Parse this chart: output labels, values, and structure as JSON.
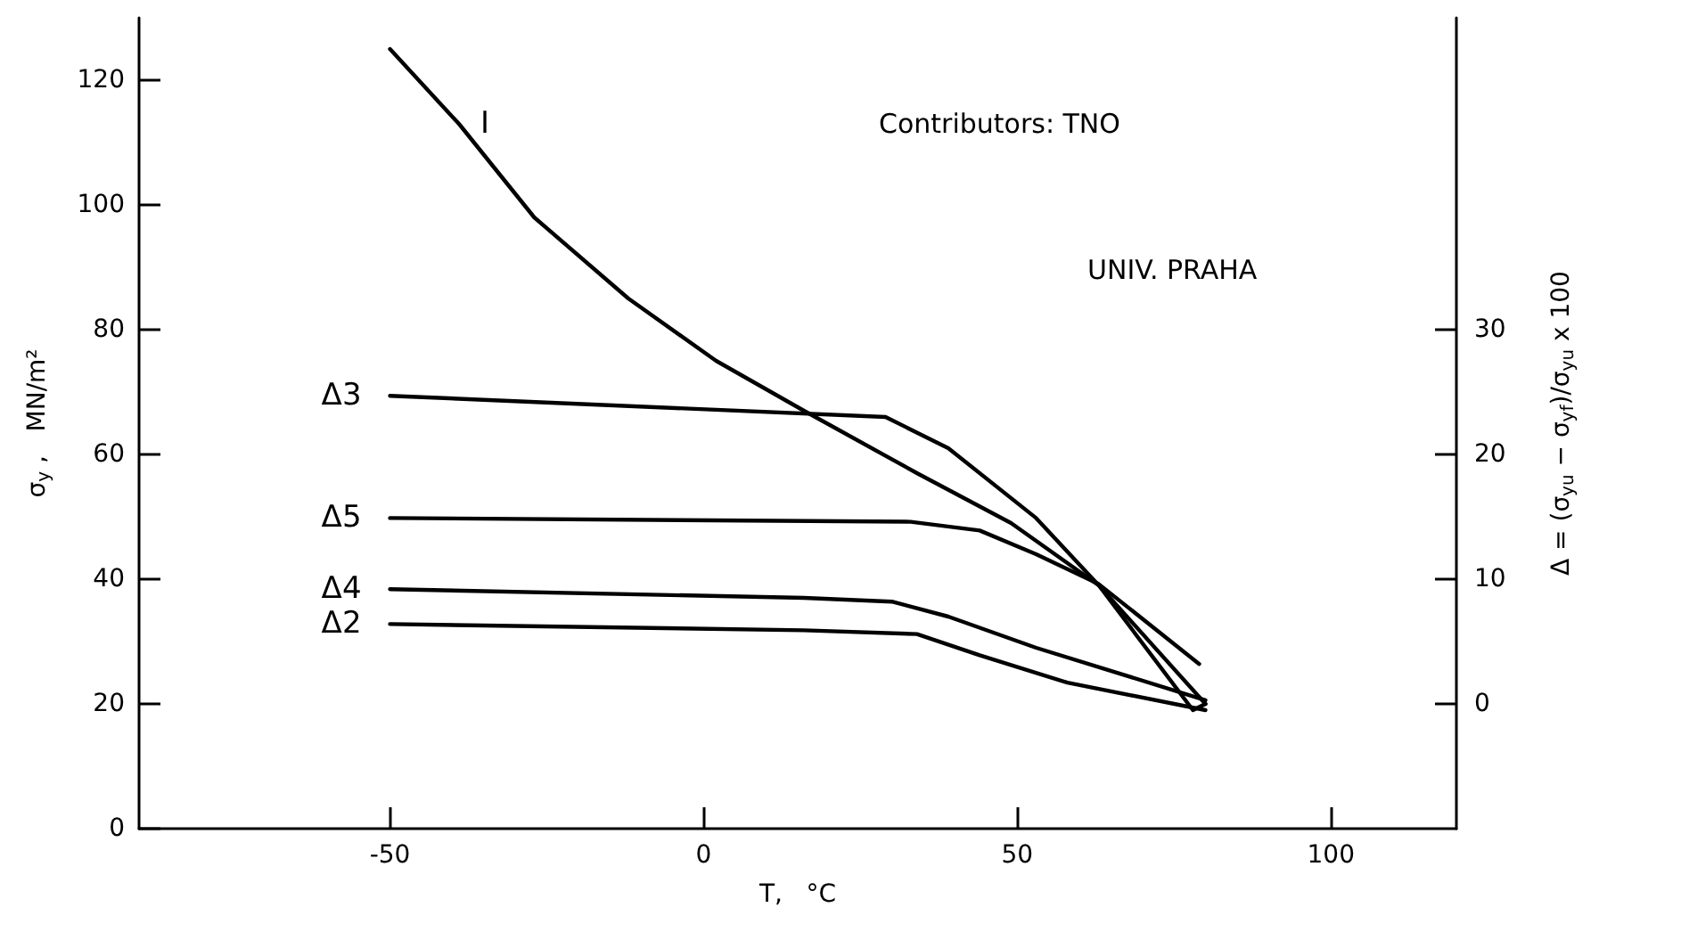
{
  "chart_data": {
    "type": "line",
    "xlabel": "T,   °C",
    "ylabel": "σ$_{y}$ ,   MN/m²",
    "y2label": "Δ = (σ$_{yu}$ − σ$_{yf}$)/σ$_{yu}$ x 100",
    "xlim": [
      -90,
      120
    ],
    "xticks": [
      -50,
      0,
      50,
      100
    ],
    "ylim": [
      0,
      130
    ],
    "yticks": [
      0,
      20,
      40,
      60,
      80,
      100,
      120
    ],
    "y2lim": [
      -10,
      55
    ],
    "y2ticks": [
      0,
      10,
      20,
      30
    ],
    "grid": false,
    "legend": false,
    "marker": "none",
    "line_style": "solid",
    "annotations": [
      "Contributors: TNO",
      "UNIV. PRAHA"
    ],
    "series": [
      {
        "name": "I",
        "color": "#000000",
        "x": [
          -50,
          -39,
          -27,
          -12,
          2,
          16,
          34,
          49,
          63,
          78,
          80
        ],
        "values": [
          125,
          113,
          98,
          85,
          75,
          67,
          57,
          49,
          39,
          19,
          20
        ]
      },
      {
        "name": "Δ3",
        "color": "#000000",
        "axis": "y2",
        "x": [
          -50,
          29,
          39,
          53,
          63,
          80
        ],
        "values": [
          24.7,
          23,
          20.5,
          14.9,
          9.5,
          0
        ]
      },
      {
        "name": "Δ5",
        "color": "#000000",
        "axis": "y2",
        "x": [
          -50,
          33,
          44,
          53,
          63,
          79
        ],
        "values": [
          14.9,
          14.6,
          13.9,
          12,
          9.6,
          3.2
        ]
      },
      {
        "name": "Δ4",
        "color": "#000000",
        "axis": "y2",
        "x": [
          -50,
          16,
          30,
          39,
          53,
          80
        ],
        "values": [
          9.2,
          8.5,
          8.2,
          7,
          4.5,
          0.3
        ]
      },
      {
        "name": "Δ2",
        "color": "#000000",
        "axis": "y2",
        "x": [
          -50,
          16,
          34,
          44,
          58,
          80
        ],
        "values": [
          6.4,
          5.9,
          5.6,
          3.9,
          1.7,
          -0.5
        ]
      }
    ]
  }
}
